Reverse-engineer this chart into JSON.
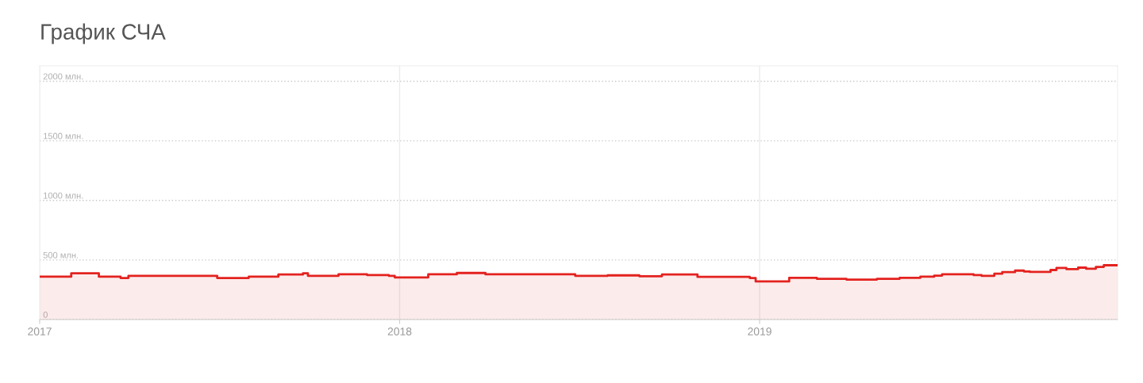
{
  "chart_data": {
    "type": "area",
    "title": "График СЧА",
    "x": [
      "2017-01-01",
      "2017-02-02",
      "2017-02-02",
      "2017-03-02",
      "2017-03-02",
      "2017-03-24",
      "2017-03-24",
      "2017-04-01",
      "2017-04-01",
      "2017-06-30",
      "2017-06-30",
      "2017-08-01",
      "2017-08-01",
      "2017-08-31",
      "2017-08-31",
      "2017-09-25",
      "2017-09-25",
      "2017-09-30",
      "2017-09-30",
      "2017-10-31",
      "2017-10-31",
      "2017-11-29",
      "2017-11-29",
      "2017-12-21",
      "2017-12-21",
      "2017-12-27",
      "2017-12-27",
      "2018-01-30",
      "2018-01-30",
      "2018-02-28",
      "2018-02-28",
      "2018-03-29",
      "2018-03-29",
      "2018-06-28",
      "2018-06-28",
      "2018-07-31",
      "2018-07-31",
      "2018-09-01",
      "2018-09-01",
      "2018-09-24",
      "2018-09-24",
      "2018-10-30",
      "2018-10-30",
      "2018-12-22",
      "2018-12-22",
      "2018-12-28",
      "2018-12-28",
      "2019-01-31",
      "2019-01-31",
      "2019-02-28",
      "2019-02-28",
      "2019-03-30",
      "2019-03-30",
      "2019-04-30",
      "2019-04-30",
      "2019-05-23",
      "2019-05-23",
      "2019-06-13",
      "2019-06-13",
      "2019-06-27",
      "2019-06-27",
      "2019-07-05",
      "2019-07-05",
      "2019-08-06",
      "2019-08-06",
      "2019-08-14",
      "2019-08-14",
      "2019-08-27",
      "2019-08-27",
      "2019-09-04",
      "2019-09-04",
      "2019-09-17",
      "2019-09-17",
      "2019-09-26",
      "2019-09-26",
      "2019-10-02",
      "2019-10-02",
      "2019-10-23",
      "2019-10-23",
      "2019-10-29",
      "2019-10-29",
      "2019-11-08",
      "2019-11-08",
      "2019-11-20",
      "2019-11-20",
      "2019-11-28",
      "2019-11-28",
      "2019-12-08",
      "2019-12-08",
      "2019-12-16",
      "2019-12-16",
      "2019-12-30"
    ],
    "series": [
      {
        "color": "#e3221f",
        "values": [
          360,
          360,
          389,
          389,
          360,
          360,
          349,
          349,
          367,
          367,
          349,
          349,
          360,
          360,
          378,
          378,
          389,
          389,
          367,
          367,
          380,
          380,
          373,
          373,
          367,
          367,
          354,
          354,
          380,
          380,
          391,
          391,
          380,
          380,
          367,
          367,
          371,
          371,
          364,
          364,
          378,
          378,
          358,
          358,
          349,
          349,
          320,
          320,
          351,
          351,
          342,
          342,
          336,
          336,
          342,
          342,
          351,
          351,
          360,
          360,
          369,
          369,
          380,
          380,
          373,
          373,
          367,
          367,
          385,
          385,
          398,
          398,
          411,
          411,
          404,
          404,
          400,
          400,
          416,
          416,
          433,
          433,
          424,
          424,
          436,
          436,
          427,
          427,
          442,
          442,
          456,
          456
        ]
      }
    ],
    "xlim": [
      "2017-01-01",
      "2019-12-30"
    ],
    "xticks": [
      "2017",
      "2018",
      "2019"
    ],
    "ylim": [
      0,
      2130
    ],
    "yticks": [
      0,
      {
        "value": 500,
        "label": "500 млн."
      },
      {
        "value": 1000,
        "label": "1000 млн."
      },
      {
        "value": 1500,
        "label": "1500 млн."
      },
      {
        "value": 2000,
        "label": "2000 млн."
      }
    ],
    "grid": true
  }
}
